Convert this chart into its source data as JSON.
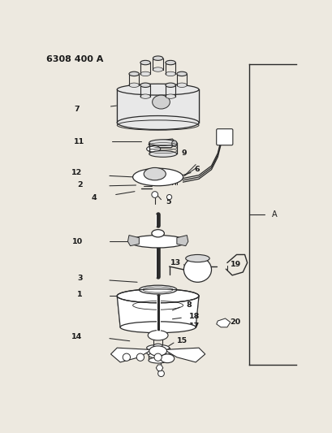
{
  "title": "6308 400 A",
  "bg_color": "#ede9e0",
  "line_color": "#2a2a2a",
  "label_color": "#1a1a1a",
  "title_fontsize": 8.5
}
